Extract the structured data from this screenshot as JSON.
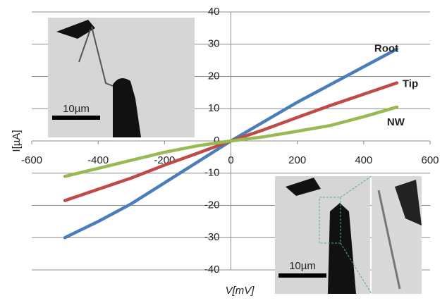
{
  "chart_data": {
    "type": "line",
    "x_label": "V[mV]",
    "y_label": "I[µA]",
    "x": [
      -500,
      -400,
      -300,
      -200,
      -100,
      0,
      100,
      200,
      300,
      400,
      500
    ],
    "series": [
      {
        "name": "Root",
        "color": "#4a7ebb",
        "values": [
          -30,
          -25,
          -19.5,
          -13,
          -6.5,
          0,
          6,
          12,
          17.5,
          23,
          28.5
        ]
      },
      {
        "name": "Tip",
        "color": "#be4b48",
        "values": [
          -18.5,
          -15,
          -11.5,
          -7.5,
          -3.8,
          0,
          3.5,
          7.3,
          11,
          14.5,
          18
        ]
      },
      {
        "name": "NW",
        "color": "#98b954",
        "values": [
          -11,
          -8.5,
          -6,
          -3.5,
          -1.5,
          0,
          1.3,
          3,
          4.8,
          7.5,
          10.5
        ]
      }
    ],
    "xlim": [
      -600,
      600
    ],
    "xticks": [
      -600,
      -400,
      -200,
      0,
      200,
      400,
      600
    ],
    "ylim": [
      -40,
      40
    ],
    "yticks": [
      -40,
      -30,
      -20,
      -10,
      0,
      10,
      20,
      30,
      40
    ],
    "grid": true,
    "annotations": [
      "10µm",
      "10µm"
    ]
  }
}
